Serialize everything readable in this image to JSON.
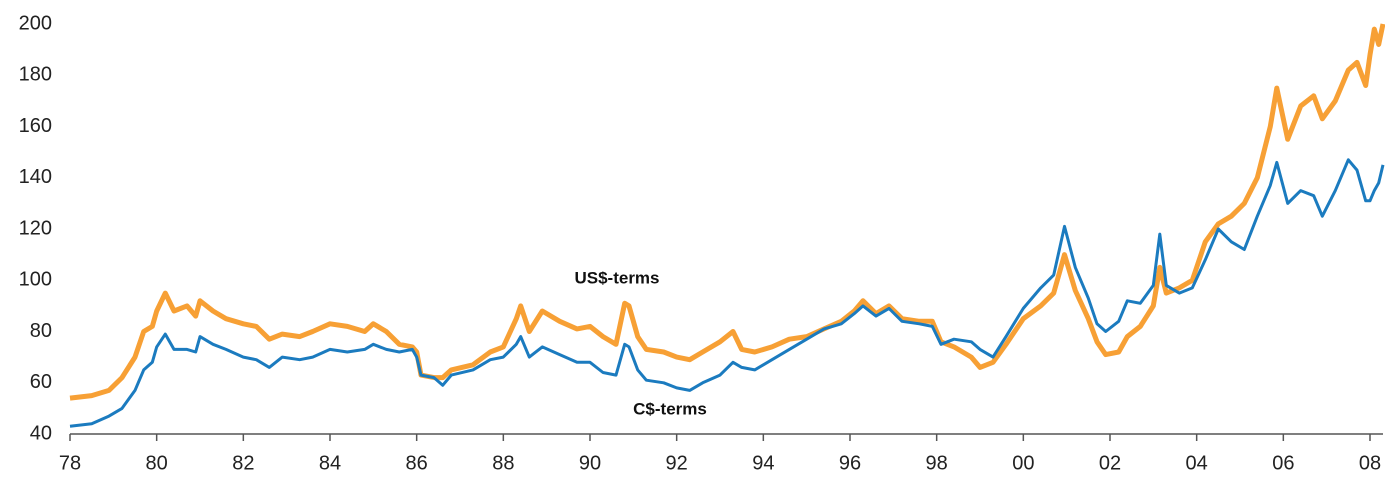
{
  "chart_data": {
    "type": "line",
    "x": [
      1978.0,
      1978.5,
      1978.9,
      1979.2,
      1979.5,
      1979.7,
      1979.9,
      1980.0,
      1980.2,
      1980.4,
      1980.7,
      1980.9,
      1981.0,
      1981.3,
      1981.6,
      1982.0,
      1982.3,
      1982.6,
      1982.9,
      1983.3,
      1983.6,
      1984.0,
      1984.4,
      1984.8,
      1985.0,
      1985.3,
      1985.6,
      1985.9,
      1986.0,
      1986.1,
      1986.4,
      1986.6,
      1986.8,
      1987.3,
      1987.7,
      1988.0,
      1988.3,
      1988.4,
      1988.6,
      1988.9,
      1989.3,
      1989.7,
      1990.0,
      1990.3,
      1990.6,
      1990.8,
      1990.9,
      1991.1,
      1991.3,
      1991.7,
      1992.0,
      1992.3,
      1992.6,
      1993.0,
      1993.3,
      1993.5,
      1993.8,
      1994.2,
      1994.6,
      1995.0,
      1995.4,
      1995.8,
      1996.1,
      1996.3,
      1996.6,
      1996.9,
      1997.2,
      1997.6,
      1997.9,
      1998.1,
      1998.4,
      1998.8,
      1999.0,
      1999.3,
      1999.6,
      2000.0,
      2000.4,
      2000.7,
      2000.95,
      2001.2,
      2001.5,
      2001.7,
      2001.9,
      2002.2,
      2002.4,
      2002.7,
      2003.0,
      2003.15,
      2003.3,
      2003.6,
      2003.9,
      2004.2,
      2004.5,
      2004.8,
      2005.1,
      2005.4,
      2005.7,
      2005.85,
      2006.1,
      2006.4,
      2006.7,
      2006.9,
      2007.2,
      2007.5,
      2007.7,
      2007.9,
      2008.0,
      2008.1,
      2008.2,
      2008.3
    ],
    "series": [
      {
        "name": "US$-terms",
        "color": "#f7a035",
        "values": [
          54,
          55,
          57,
          62,
          70,
          80,
          82,
          88,
          95,
          88,
          90,
          86,
          92,
          88,
          85,
          83,
          82,
          77,
          79,
          78,
          80,
          83,
          82,
          80,
          83,
          80,
          75,
          74,
          72,
          63,
          62,
          62,
          65,
          67,
          72,
          74,
          85,
          90,
          80,
          88,
          84,
          81,
          82,
          78,
          75,
          91,
          90,
          78,
          73,
          72,
          70,
          69,
          72,
          76,
          80,
          73,
          72,
          74,
          77,
          78,
          81,
          84,
          88,
          92,
          87,
          90,
          85,
          84,
          84,
          76,
          74,
          70,
          66,
          68,
          75,
          85,
          90,
          95,
          110,
          96,
          85,
          76,
          71,
          72,
          78,
          82,
          90,
          105,
          95,
          97,
          100,
          115,
          122,
          125,
          130,
          140,
          160,
          175,
          155,
          168,
          172,
          163,
          170,
          182,
          185,
          176,
          188,
          198,
          192,
          200
        ]
      },
      {
        "name": "C$-terms",
        "color": "#1b7bbf",
        "values": [
          43,
          44,
          47,
          50,
          57,
          65,
          68,
          74,
          79,
          73,
          73,
          72,
          78,
          75,
          73,
          70,
          69,
          66,
          70,
          69,
          70,
          73,
          72,
          73,
          75,
          73,
          72,
          73,
          70,
          63,
          62,
          59,
          63,
          65,
          69,
          70,
          75,
          78,
          70,
          74,
          71,
          68,
          68,
          64,
          63,
          75,
          74,
          65,
          61,
          60,
          58,
          57,
          60,
          63,
          68,
          66,
          65,
          69,
          73,
          77,
          81,
          83,
          87,
          90,
          86,
          89,
          84,
          83,
          82,
          75,
          77,
          76,
          73,
          70,
          78,
          89,
          97,
          102,
          121,
          105,
          93,
          83,
          80,
          84,
          92,
          91,
          98,
          118,
          98,
          95,
          97,
          108,
          120,
          115,
          112,
          125,
          137,
          146,
          130,
          135,
          133,
          125,
          135,
          147,
          143,
          131,
          131,
          135,
          138,
          145
        ]
      }
    ],
    "xlim": [
      1978,
      2008.3
    ],
    "xticks": [
      {
        "value": 1978,
        "label": "78"
      },
      {
        "value": 1980,
        "label": "80"
      },
      {
        "value": 1982,
        "label": "82"
      },
      {
        "value": 1984,
        "label": "84"
      },
      {
        "value": 1986,
        "label": "86"
      },
      {
        "value": 1988,
        "label": "88"
      },
      {
        "value": 1990,
        "label": "90"
      },
      {
        "value": 1992,
        "label": "92"
      },
      {
        "value": 1994,
        "label": "94"
      },
      {
        "value": 1996,
        "label": "96"
      },
      {
        "value": 1998,
        "label": "98"
      },
      {
        "value": 2000,
        "label": "00"
      },
      {
        "value": 2002,
        "label": "02"
      },
      {
        "value": 2004,
        "label": "04"
      },
      {
        "value": 2006,
        "label": "06"
      },
      {
        "value": 2008,
        "label": "08"
      }
    ],
    "ylim": [
      40,
      200
    ],
    "yticks": [
      40,
      60,
      80,
      100,
      120,
      140,
      160,
      180,
      200
    ],
    "grid": false
  }
}
